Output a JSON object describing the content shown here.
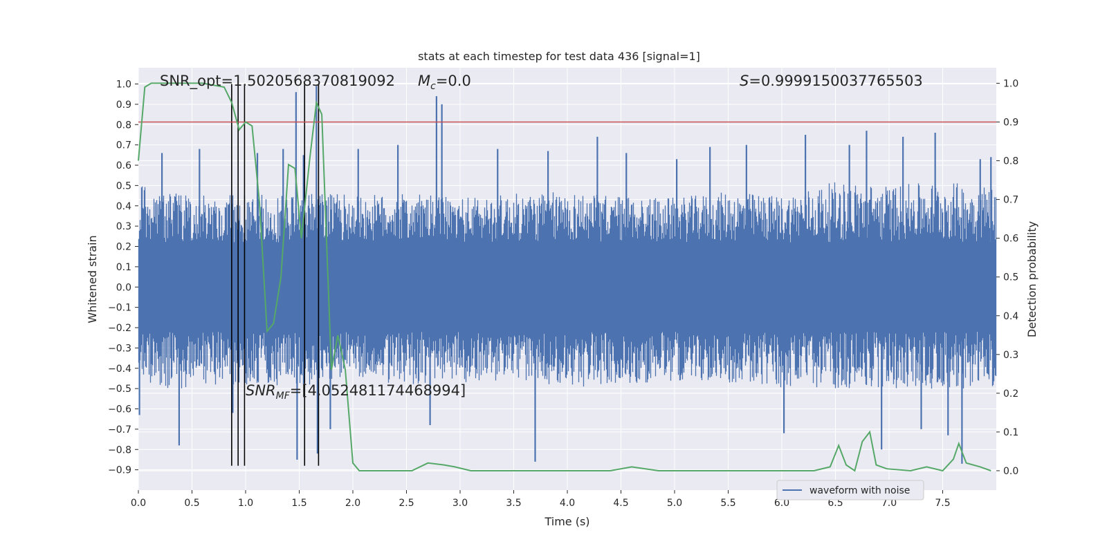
{
  "chart_data": {
    "type": "line",
    "title": "stats at each timestep for test data 436 [signal=1]",
    "xlabel": "Time (s)",
    "ylabel_left": "Whitened strain",
    "ylabel_right": "Detection probability",
    "xlim": [
      0.0,
      8.0
    ],
    "ylim_left": [
      -1.0,
      1.08
    ],
    "ylim_right": [
      -0.05,
      1.04
    ],
    "x_ticks": [
      0.0,
      0.5,
      1.0,
      1.5,
      2.0,
      2.5,
      3.0,
      3.5,
      4.0,
      4.5,
      5.0,
      5.5,
      6.0,
      6.5,
      7.0,
      7.5
    ],
    "x_tick_labels": [
      "0.0",
      "0.5",
      "1.0",
      "1.5",
      "2.0",
      "2.5",
      "3.0",
      "3.5",
      "4.0",
      "4.5",
      "5.0",
      "5.5",
      "6.0",
      "6.5",
      "7.0",
      "7.5"
    ],
    "y_left_ticks": [
      1.0,
      0.9,
      0.8,
      0.7,
      0.6,
      0.5,
      0.4,
      0.3,
      0.2,
      0.1,
      0.0,
      -0.1,
      -0.2,
      -0.3,
      -0.4,
      -0.5,
      -0.6,
      -0.7,
      -0.8,
      -0.9
    ],
    "y_left_tick_labels": [
      "1.0",
      "0.9",
      "0.8",
      "0.7",
      "0.6",
      "0.5",
      "0.4",
      "0.3",
      "0.2",
      "0.1",
      "0.0",
      "−0.1",
      "−0.2",
      "−0.3",
      "−0.4",
      "−0.5",
      "−0.6",
      "−0.7",
      "−0.8",
      "−0.9"
    ],
    "y_right_ticks": [
      1.0,
      0.9,
      0.8,
      0.7,
      0.6,
      0.5,
      0.4,
      0.3,
      0.2,
      0.1,
      0.0
    ],
    "y_right_tick_labels": [
      "1.0",
      "0.9",
      "0.8",
      "0.7",
      "0.6",
      "0.5",
      "0.4",
      "0.3",
      "0.2",
      "0.1",
      "0.0"
    ],
    "grid": true,
    "threshold": {
      "value": 0.9,
      "axis": "right",
      "color": "#c44e52"
    },
    "event_lines": {
      "times": [
        0.87,
        0.93,
        0.99,
        1.55,
        1.68
      ],
      "ymin": -0.88,
      "ymax": 1.0
    },
    "waveform": {
      "name": "waveform with noise",
      "color": "#4c72b0",
      "envelope": [
        [
          0.0,
          0.5,
          -0.45
        ],
        [
          0.25,
          0.48,
          -0.5
        ],
        [
          0.5,
          0.45,
          -0.5
        ],
        [
          0.75,
          0.46,
          -0.48
        ],
        [
          1.0,
          0.45,
          -0.48
        ],
        [
          1.25,
          0.47,
          -0.48
        ],
        [
          1.5,
          0.45,
          -0.5
        ],
        [
          1.75,
          0.47,
          -0.45
        ],
        [
          2.0,
          0.45,
          -0.46
        ],
        [
          2.5,
          0.46,
          -0.48
        ],
        [
          3.0,
          0.44,
          -0.47
        ],
        [
          3.5,
          0.46,
          -0.46
        ],
        [
          4.0,
          0.47,
          -0.5
        ],
        [
          4.5,
          0.45,
          -0.48
        ],
        [
          5.0,
          0.44,
          -0.46
        ],
        [
          5.5,
          0.47,
          -0.47
        ],
        [
          6.0,
          0.45,
          -0.5
        ],
        [
          6.5,
          0.52,
          -0.5
        ],
        [
          7.0,
          0.5,
          -0.5
        ],
        [
          7.5,
          0.52,
          -0.5
        ],
        [
          8.0,
          0.5,
          -0.5
        ]
      ],
      "spikes": [
        [
          0.01,
          -0.63
        ],
        [
          0.22,
          0.66
        ],
        [
          0.38,
          -0.78
        ],
        [
          0.57,
          0.68
        ],
        [
          0.88,
          -0.62
        ],
        [
          1.11,
          0.66
        ],
        [
          1.35,
          0.68
        ],
        [
          1.47,
          0.96
        ],
        [
          1.48,
          -0.85
        ],
        [
          1.54,
          0.65
        ],
        [
          1.66,
          0.99
        ],
        [
          1.67,
          -0.82
        ],
        [
          1.79,
          -0.7
        ],
        [
          2.05,
          0.68
        ],
        [
          2.42,
          0.7
        ],
        [
          2.78,
          0.94
        ],
        [
          2.83,
          0.9
        ],
        [
          2.72,
          -0.68
        ],
        [
          3.35,
          0.68
        ],
        [
          3.7,
          -0.86
        ],
        [
          3.82,
          0.67
        ],
        [
          4.28,
          0.74
        ],
        [
          4.55,
          0.66
        ],
        [
          5.02,
          0.63
        ],
        [
          5.33,
          0.69
        ],
        [
          5.67,
          0.7
        ],
        [
          6.02,
          -0.72
        ],
        [
          6.22,
          0.75
        ],
        [
          6.63,
          0.7
        ],
        [
          6.79,
          0.77
        ],
        [
          6.93,
          -0.8
        ],
        [
          7.13,
          0.74
        ],
        [
          7.3,
          -0.7
        ],
        [
          7.43,
          0.76
        ],
        [
          7.55,
          -0.73
        ],
        [
          7.68,
          -0.87
        ],
        [
          7.85,
          0.63
        ],
        [
          7.95,
          0.64
        ]
      ]
    },
    "probability": {
      "color": "#55a868",
      "x": [
        0.0,
        0.06,
        0.12,
        0.2,
        0.4,
        0.6,
        0.8,
        0.87,
        0.94,
        1.0,
        1.06,
        1.13,
        1.2,
        1.26,
        1.33,
        1.4,
        1.46,
        1.52,
        1.6,
        1.66,
        1.71,
        1.8,
        1.86,
        1.93,
        2.0,
        2.06,
        2.2,
        2.4,
        2.55,
        2.7,
        2.85,
        2.95,
        3.1,
        3.3,
        3.6,
        4.0,
        4.4,
        4.6,
        4.85,
        5.0,
        5.5,
        5.9,
        6.1,
        6.3,
        6.45,
        6.53,
        6.6,
        6.68,
        6.75,
        6.82,
        6.88,
        6.98,
        7.2,
        7.35,
        7.5,
        7.6,
        7.65,
        7.72,
        7.85,
        7.95
      ],
      "y": [
        0.8,
        0.99,
        1.0,
        1.0,
        1.0,
        1.0,
        0.99,
        0.95,
        0.88,
        0.9,
        0.89,
        0.69,
        0.36,
        0.38,
        0.5,
        0.79,
        0.78,
        0.6,
        0.81,
        0.95,
        0.92,
        0.26,
        0.35,
        0.26,
        0.02,
        0.0,
        0.0,
        0.0,
        0.0,
        0.02,
        0.015,
        0.01,
        0.0,
        0.0,
        0.0,
        0.0,
        0.0,
        0.01,
        0.0,
        0.0,
        0.0,
        0.0,
        0.0,
        0.0,
        0.01,
        0.065,
        0.015,
        0.0,
        0.075,
        0.1,
        0.015,
        0.005,
        0.0,
        0.01,
        0.0,
        0.03,
        0.07,
        0.02,
        0.01,
        0.0
      ]
    },
    "annotations": {
      "snr_opt": "SNR_opt=1.5020568370819092",
      "mc_symbol": "M",
      "mc_sub": "c",
      "mc_value": "=0.0",
      "s_symbol": "S",
      "s_value": "=0.9999150037765503",
      "snr_mf_symbol": "SNR",
      "snr_mf_sub": "MF",
      "snr_mf_value": "=[4.052481174468994]"
    },
    "legend": {
      "label": "waveform with noise",
      "location": "lower-right"
    }
  }
}
